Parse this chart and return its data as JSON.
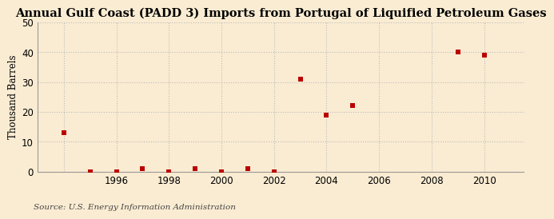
{
  "title": "Annual Gulf Coast (PADD 3) Imports from Portugal of Liquified Petroleum Gases",
  "ylabel": "Thousand Barrels",
  "source_text": "Source: U.S. Energy Information Administration",
  "background_color": "#faecd2",
  "plot_background_color": "#faecd2",
  "marker_color": "#bb0000",
  "marker": "s",
  "marker_size": 25,
  "years": [
    1994,
    1995,
    1996,
    1997,
    1998,
    1999,
    2000,
    2001,
    2002,
    2003,
    2004,
    2005,
    2009,
    2010
  ],
  "values": [
    13,
    0,
    0,
    1,
    0,
    1,
    0,
    1,
    0,
    31,
    19,
    22,
    40,
    39
  ],
  "xlim": [
    1993.0,
    2011.5
  ],
  "ylim": [
    0,
    50
  ],
  "xticks": [
    1994,
    1996,
    1998,
    2000,
    2002,
    2004,
    2006,
    2008,
    2010
  ],
  "xtick_labels": [
    "",
    "1996",
    "1998",
    "2000",
    "2002",
    "2004",
    "2006",
    "2008",
    "2010"
  ],
  "yticks": [
    0,
    10,
    20,
    30,
    40,
    50
  ],
  "grid_color": "#bbbbbb",
  "grid_linestyle": ":",
  "title_fontsize": 10.5,
  "axis_fontsize": 8.5,
  "tick_fontsize": 8.5,
  "source_fontsize": 7.5
}
